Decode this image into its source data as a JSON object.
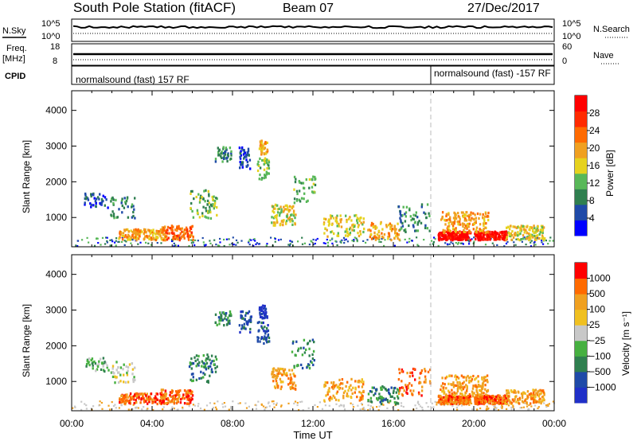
{
  "header": {
    "title": "South Pole Station (fitACF)",
    "beam": "Beam 07",
    "date": "27/Dec/2017"
  },
  "nsky_panel": {
    "left_label": "N.Sky",
    "left_ticks": [
      "10^5",
      "10^0"
    ],
    "right_label": "N.Search",
    "right_ticks": [
      "10^5",
      "10^0"
    ]
  },
  "freq_panel": {
    "left_label_line1": "Freq.",
    "left_label_line2": "[MHz]",
    "left_ticks": [
      "18",
      "8"
    ],
    "right_label": "Nave",
    "right_ticks": [
      "60",
      "0"
    ]
  },
  "cpid_panel": {
    "label": "CPID",
    "segments": [
      {
        "text": "normalsound (fast) 157 RF",
        "start_hour": 0
      },
      {
        "text": "normalsound (fast) -157 RF",
        "start_hour": 18
      }
    ]
  },
  "colors": {
    "power_scale": [
      "#0000ff",
      "#1f4aa8",
      "#2f7f4f",
      "#58b858",
      "#e6d21e",
      "#f0a020",
      "#ff6a00",
      "#ff2a00",
      "#ff0000"
    ],
    "velocity_scale": [
      "#2030c8",
      "#1f4aa8",
      "#2f7f4f",
      "#46b040",
      "#c8c8c8",
      "#f0c020",
      "#f0a020",
      "#ff6a00",
      "#ff0000"
    ]
  },
  "chart_data": [
    {
      "type": "heatmap",
      "name": "power",
      "ylabel": "Slant Range [km]",
      "yticks": [
        "1000",
        "2000",
        "3000",
        "4000"
      ],
      "ylim": [
        180,
        4550
      ],
      "xlim": [
        0,
        24
      ],
      "colorbar_label": "Power [dB]",
      "colorbar_ticks": [
        "4",
        "8",
        "12",
        "16",
        "20",
        "24",
        "28"
      ],
      "colorbar_range": [
        0,
        32
      ]
    },
    {
      "type": "heatmap",
      "name": "velocity",
      "ylabel": "Slant Range [km]",
      "yticks": [
        "1000",
        "2000",
        "3000",
        "4000"
      ],
      "ylim": [
        180,
        4550
      ],
      "xlim": [
        0,
        24
      ],
      "xlabel": "Time UT",
      "xticks": [
        "00:00",
        "04:00",
        "08:00",
        "12:00",
        "16:00",
        "20:00",
        "00:00"
      ],
      "colorbar_label": "Velocity [m s⁻¹]",
      "colorbar_ticks": [
        "1000",
        "500",
        "100",
        "25",
        "−25",
        "−100",
        "−500",
        "−1000"
      ]
    }
  ]
}
